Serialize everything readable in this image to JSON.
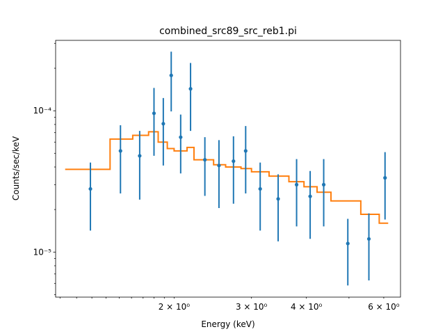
{
  "chart_data": {
    "type": "scatter",
    "title": "combined_src89_src_reb1.pi",
    "xlabel": "Energy (keV)",
    "ylabel": "Counts/sec/keV",
    "xscale": "log",
    "yscale": "log",
    "xlim": [
      1.075,
      6.55
    ],
    "ylim": [
      4.8e-06,
      0.000315
    ],
    "grid": false,
    "x_major_ticks": [
      {
        "value": 2,
        "label": "2 × 10⁰"
      },
      {
        "value": 3,
        "label": "3 × 10⁰"
      },
      {
        "value": 4,
        "label": "4 × 10⁰"
      },
      {
        "value": 6,
        "label": "6 × 10⁰"
      }
    ],
    "y_major_ticks": [
      {
        "value": 1e-05,
        "label": "10⁻⁵"
      },
      {
        "value": 0.0001,
        "label": "10⁻⁴"
      }
    ],
    "series": [
      {
        "kind": "data",
        "color": "#1f77b4",
        "points": [
          {
            "x": 1.29,
            "y": 2.8e-05,
            "lo": 1.42e-05,
            "hi": 4.3e-05
          },
          {
            "x": 1.51,
            "y": 5.2e-05,
            "lo": 2.6e-05,
            "hi": 7.9e-05
          },
          {
            "x": 1.67,
            "y": 4.8e-05,
            "lo": 2.35e-05,
            "hi": 7.2e-05
          },
          {
            "x": 1.8,
            "y": 9.6e-05,
            "lo": 4.8e-05,
            "hi": 0.000145
          },
          {
            "x": 1.89,
            "y": 8.1e-05,
            "lo": 4.1e-05,
            "hi": 0.000123
          },
          {
            "x": 1.97,
            "y": 0.000178,
            "lo": 9.9e-05,
            "hi": 0.000262
          },
          {
            "x": 2.07,
            "y": 6.5e-05,
            "lo": 3.6e-05,
            "hi": 9.4e-05
          },
          {
            "x": 2.18,
            "y": 0.000143,
            "lo": 7.2e-05,
            "hi": 0.000218
          },
          {
            "x": 2.35,
            "y": 4.5e-05,
            "lo": 2.5e-05,
            "hi": 6.5e-05
          },
          {
            "x": 2.53,
            "y": 4.1e-05,
            "lo": 2.05e-05,
            "hi": 6.2e-05
          },
          {
            "x": 2.73,
            "y": 4.4e-05,
            "lo": 2.2e-05,
            "hi": 6.6e-05
          },
          {
            "x": 2.91,
            "y": 5.2e-05,
            "lo": 2.6e-05,
            "hi": 7.8e-05
          },
          {
            "x": 3.14,
            "y": 2.8e-05,
            "lo": 1.42e-05,
            "hi": 4.3e-05
          },
          {
            "x": 3.45,
            "y": 2.38e-05,
            "lo": 1.19e-05,
            "hi": 3.55e-05
          },
          {
            "x": 3.8,
            "y": 3e-05,
            "lo": 1.52e-05,
            "hi": 4.55e-05
          },
          {
            "x": 4.08,
            "y": 2.48e-05,
            "lo": 1.24e-05,
            "hi": 3.75e-05
          },
          {
            "x": 4.38,
            "y": 3e-05,
            "lo": 1.52e-05,
            "hi": 4.55e-05
          },
          {
            "x": 4.97,
            "y": 1.15e-05,
            "lo": 5.8e-06,
            "hi": 1.72e-05
          },
          {
            "x": 5.55,
            "y": 1.24e-05,
            "lo": 6.3e-06,
            "hi": 1.88e-05
          },
          {
            "x": 6.04,
            "y": 3.35e-05,
            "lo": 1.7e-05,
            "hi": 5.1e-05
          }
        ]
      },
      {
        "kind": "model",
        "color": "#ff7f0e",
        "step_edges": [
          1.13,
          1.43,
          1.61,
          1.75,
          1.84,
          1.93,
          2.0,
          2.14,
          2.22,
          2.46,
          2.62,
          2.84,
          3.0,
          3.29,
          3.65,
          3.95,
          4.23,
          4.55,
          5.32,
          5.86,
          6.14
        ],
        "step_values": [
          3.85e-05,
          6.3e-05,
          6.7e-05,
          7.1e-05,
          6e-05,
          5.4e-05,
          5.2e-05,
          5.5e-05,
          4.5e-05,
          4.15e-05,
          4e-05,
          3.9e-05,
          3.7e-05,
          3.45e-05,
          3.15e-05,
          2.9e-05,
          2.65e-05,
          2.3e-05,
          1.85e-05,
          1.6e-05
        ]
      }
    ]
  }
}
